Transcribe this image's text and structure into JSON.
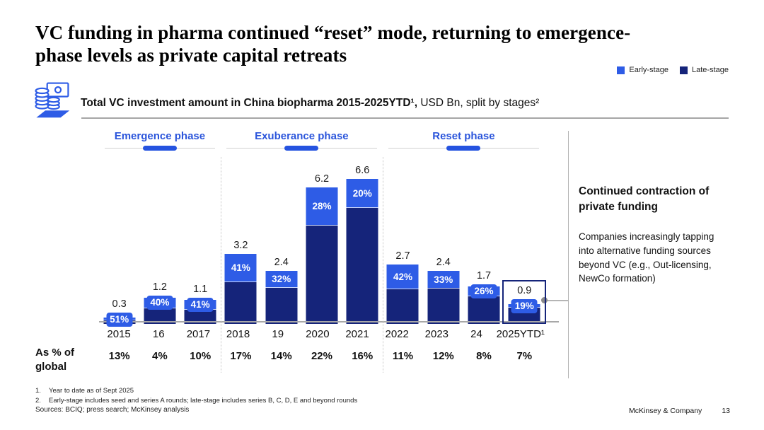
{
  "slide": {
    "title": "VC funding in pharma continued “reset” mode, returning to emergence-phase levels as private capital retreats",
    "company": "McKinsey & Company",
    "page_number": "13"
  },
  "legend": {
    "early_label": "Early-stage",
    "late_label": "Late-stage"
  },
  "kicker": {
    "icon": "coins-money-icon",
    "bold": "Total VC investment amount in China biopharma 2015-2025YTD¹,",
    "rest": " USD Bn, split by stages²"
  },
  "chart_data": {
    "type": "bar",
    "stacked": true,
    "title": "Total VC investment amount in China biopharma 2015-2025YTD, USD Bn, split by stages",
    "categories": [
      "2015",
      "16",
      "2017",
      "2018",
      "19",
      "2020",
      "2021",
      "2022",
      "2023",
      "24",
      "2025YTD¹"
    ],
    "totals_usd_bn": [
      0.3,
      1.2,
      1.1,
      3.2,
      2.4,
      6.2,
      6.6,
      2.7,
      2.4,
      1.7,
      0.9
    ],
    "early_stage_pct": [
      51,
      40,
      41,
      41,
      32,
      28,
      20,
      42,
      33,
      26,
      19
    ],
    "as_pct_of_global": [
      "13%",
      "4%",
      "10%",
      "17%",
      "14%",
      "22%",
      "16%",
      "11%",
      "12%",
      "8%",
      "7%"
    ],
    "series": [
      {
        "name": "Early-stage",
        "color": "#2E5CE6"
      },
      {
        "name": "Late-stage",
        "color": "#15247A"
      }
    ],
    "phases": [
      {
        "label": "Emergence phase",
        "cols": 3
      },
      {
        "label": "Exuberance phase",
        "cols": 4
      },
      {
        "label": "Reset phase",
        "cols": 4
      }
    ],
    "ylim": [
      0,
      6.6
    ],
    "highlight_last_bar": true,
    "legend_position": "top-right",
    "grid": false
  },
  "row_label": {
    "line1": "As % of",
    "line2": "global"
  },
  "callout": {
    "heading": "Continued contraction of private funding",
    "body": "Companies increasingly tapping into alternative funding sources beyond VC (e.g., Out-licensing, NewCo formation)"
  },
  "footnotes": [
    {
      "num": "1.",
      "text": "Year to date as of Sept 2025"
    },
    {
      "num": "2.",
      "text": "Early-stage includes seed and series A rounds; late-stage includes series B, C, D, E and beyond rounds"
    }
  ],
  "sources": "Sources: BCIQ; press search; McKinsey analysis",
  "colors": {
    "early": "#2E5CE6",
    "late": "#15247A",
    "phase_blue": "#2B55DB",
    "highlight_border": "#15247A"
  }
}
